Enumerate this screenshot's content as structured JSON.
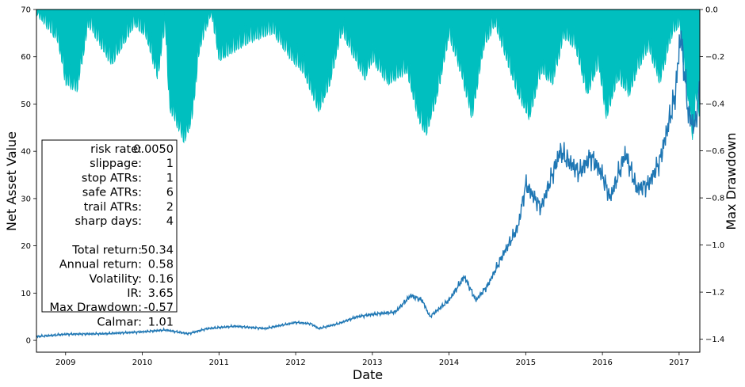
{
  "chart_data": {
    "type": "line",
    "x_label": "Date",
    "y_label_left": "Net Asset Value",
    "y_label_right": "Max Drawdown",
    "x_range": [
      2008.62,
      2017.27
    ],
    "y_left_range": [
      -2.5,
      70
    ],
    "y_right_range": [
      -1.455,
      0.0
    ],
    "x_ticks": [
      "2009",
      "2010",
      "2011",
      "2012",
      "2013",
      "2014",
      "2015",
      "2016",
      "2017"
    ],
    "y_left_ticks": [
      "0",
      "10",
      "20",
      "30",
      "40",
      "50",
      "60",
      "70"
    ],
    "y_right_ticks": [
      "0.0",
      "−0.2",
      "−0.4",
      "−0.6",
      "−0.8",
      "−1.0",
      "−1.2",
      "−1.4"
    ],
    "colors": {
      "nav": "#1f77b4",
      "drawdown": "#00bfbf"
    },
    "series": [
      {
        "name": "Net Asset Value",
        "axis": "left",
        "points": [
          [
            2008.62,
            0.8
          ],
          [
            2009.0,
            1.3
          ],
          [
            2009.5,
            1.4
          ],
          [
            2010.0,
            1.8
          ],
          [
            2010.3,
            2.2
          ],
          [
            2010.6,
            1.4
          ],
          [
            2010.85,
            2.5
          ],
          [
            2011.2,
            3.0
          ],
          [
            2011.6,
            2.5
          ],
          [
            2012.0,
            3.8
          ],
          [
            2012.2,
            3.5
          ],
          [
            2012.3,
            2.5
          ],
          [
            2012.55,
            3.5
          ],
          [
            2012.8,
            5.0
          ],
          [
            2013.0,
            5.5
          ],
          [
            2013.3,
            6.0
          ],
          [
            2013.5,
            9.5
          ],
          [
            2013.65,
            8.5
          ],
          [
            2013.75,
            5.0
          ],
          [
            2014.0,
            8.5
          ],
          [
            2014.2,
            13.5
          ],
          [
            2014.35,
            8.5
          ],
          [
            2014.5,
            11.5
          ],
          [
            2014.7,
            18.0
          ],
          [
            2014.9,
            24.0
          ],
          [
            2015.0,
            33.0
          ],
          [
            2015.2,
            28.0
          ],
          [
            2015.45,
            40.0
          ],
          [
            2015.55,
            38.0
          ],
          [
            2015.7,
            35.5
          ],
          [
            2015.85,
            39.0
          ],
          [
            2016.0,
            35.0
          ],
          [
            2016.1,
            30.0
          ],
          [
            2016.3,
            39.5
          ],
          [
            2016.45,
            32.0
          ],
          [
            2016.6,
            33.0
          ],
          [
            2016.75,
            38.0
          ],
          [
            2016.85,
            45.0
          ],
          [
            2016.95,
            52.0
          ],
          [
            2017.02,
            65.0
          ],
          [
            2017.12,
            48.0
          ],
          [
            2017.2,
            45.0
          ],
          [
            2017.27,
            53.0
          ]
        ]
      },
      {
        "name": "Max Drawdown",
        "axis": "right",
        "points": [
          [
            2008.62,
            0.0
          ],
          [
            2008.9,
            -0.12
          ],
          [
            2009.0,
            -0.3
          ],
          [
            2009.15,
            -0.33
          ],
          [
            2009.3,
            -0.05
          ],
          [
            2009.6,
            -0.22
          ],
          [
            2009.9,
            -0.05
          ],
          [
            2010.05,
            -0.1
          ],
          [
            2010.2,
            -0.28
          ],
          [
            2010.3,
            -0.05
          ],
          [
            2010.35,
            -0.4
          ],
          [
            2010.55,
            -0.55
          ],
          [
            2010.65,
            -0.45
          ],
          [
            2010.75,
            -0.15
          ],
          [
            2010.9,
            0.0
          ],
          [
            2011.0,
            -0.2
          ],
          [
            2011.4,
            -0.12
          ],
          [
            2011.7,
            -0.08
          ],
          [
            2011.95,
            -0.2
          ],
          [
            2012.1,
            -0.25
          ],
          [
            2012.3,
            -0.42
          ],
          [
            2012.45,
            -0.3
          ],
          [
            2012.6,
            -0.08
          ],
          [
            2012.9,
            -0.28
          ],
          [
            2013.0,
            -0.2
          ],
          [
            2013.2,
            -0.3
          ],
          [
            2013.45,
            -0.25
          ],
          [
            2013.6,
            -0.45
          ],
          [
            2013.7,
            -0.52
          ],
          [
            2013.85,
            -0.35
          ],
          [
            2014.0,
            -0.1
          ],
          [
            2014.15,
            -0.25
          ],
          [
            2014.3,
            -0.45
          ],
          [
            2014.45,
            -0.15
          ],
          [
            2014.6,
            -0.05
          ],
          [
            2014.75,
            -0.2
          ],
          [
            2014.9,
            -0.35
          ],
          [
            2015.05,
            -0.45
          ],
          [
            2015.2,
            -0.25
          ],
          [
            2015.35,
            -0.3
          ],
          [
            2015.5,
            -0.1
          ],
          [
            2015.65,
            -0.15
          ],
          [
            2015.8,
            -0.35
          ],
          [
            2015.95,
            -0.22
          ],
          [
            2016.05,
            -0.45
          ],
          [
            2016.2,
            -0.28
          ],
          [
            2016.35,
            -0.35
          ],
          [
            2016.45,
            -0.25
          ],
          [
            2016.6,
            -0.15
          ],
          [
            2016.75,
            -0.3
          ],
          [
            2016.9,
            -0.1
          ],
          [
            2017.0,
            -0.05
          ],
          [
            2017.05,
            -0.2
          ],
          [
            2017.12,
            -0.38
          ],
          [
            2017.18,
            -0.55
          ],
          [
            2017.22,
            -0.35
          ],
          [
            2017.27,
            -0.45
          ]
        ]
      }
    ],
    "stats_box": {
      "params": [
        {
          "label": "risk rate:",
          "value": "0.0050"
        },
        {
          "label": "slippage:",
          "value": "1"
        },
        {
          "label": "stop ATRs:",
          "value": "1"
        },
        {
          "label": "safe ATRs:",
          "value": "6"
        },
        {
          "label": "trail ATRs:",
          "value": "2"
        },
        {
          "label": "sharp days:",
          "value": "4"
        }
      ],
      "metrics": [
        {
          "label": "Total return:",
          "value": "50.34"
        },
        {
          "label": "Annual return:",
          "value": "0.58"
        },
        {
          "label": "Volatility:",
          "value": "0.16 "
        },
        {
          "label": "IR:",
          "value": "3.65"
        },
        {
          "label": "Max Drawdown:",
          "value": "-0.57"
        },
        {
          "label": "Calmar:",
          "value": "1.01"
        }
      ]
    }
  }
}
